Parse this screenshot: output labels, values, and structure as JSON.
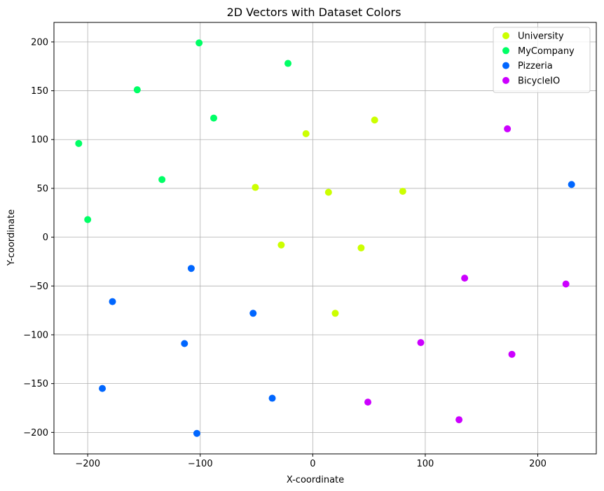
{
  "chart_data": {
    "type": "scatter",
    "title": "2D Vectors with Dataset Colors",
    "xlabel": "X-coordinate",
    "ylabel": "Y-coordinate",
    "xlim": [
      -230,
      252
    ],
    "ylim": [
      -222,
      220
    ],
    "xticks": [
      -200,
      -100,
      0,
      100,
      200
    ],
    "xtick_labels": [
      "−200",
      "−100",
      "0",
      "100",
      "200"
    ],
    "yticks": [
      -200,
      -150,
      -100,
      -50,
      0,
      50,
      100,
      150,
      200
    ],
    "ytick_labels": [
      "−200",
      "−150",
      "−100",
      "−50",
      "0",
      "50",
      "100",
      "150",
      "200"
    ],
    "grid": true,
    "legend_position": "top-right",
    "series": [
      {
        "name": "University",
        "color": "#ccff00",
        "points": [
          [
            -6,
            106
          ],
          [
            55,
            120
          ],
          [
            -51,
            51
          ],
          [
            14,
            46
          ],
          [
            80,
            47
          ],
          [
            -28,
            -8
          ],
          [
            43,
            -11
          ],
          [
            20,
            -78
          ]
        ]
      },
      {
        "name": "MyCompany",
        "color": "#00ff66",
        "points": [
          [
            -101,
            199
          ],
          [
            -22,
            178
          ],
          [
            -156,
            151
          ],
          [
            -88,
            122
          ],
          [
            -208,
            96
          ],
          [
            -134,
            59
          ],
          [
            -200,
            18
          ]
        ]
      },
      {
        "name": "Pizzeria",
        "color": "#0066ff",
        "points": [
          [
            230,
            54
          ],
          [
            -108,
            -32
          ],
          [
            -178,
            -66
          ],
          [
            -53,
            -78
          ],
          [
            -114,
            -109
          ],
          [
            -187,
            -155
          ],
          [
            -36,
            -165
          ],
          [
            -103,
            -201
          ]
        ]
      },
      {
        "name": "BicycleIO",
        "color": "#cc00ff",
        "points": [
          [
            173,
            111
          ],
          [
            135,
            -42
          ],
          [
            225,
            -48
          ],
          [
            96,
            -108
          ],
          [
            177,
            -120
          ],
          [
            49,
            -169
          ],
          [
            130,
            -187
          ]
        ]
      }
    ]
  }
}
